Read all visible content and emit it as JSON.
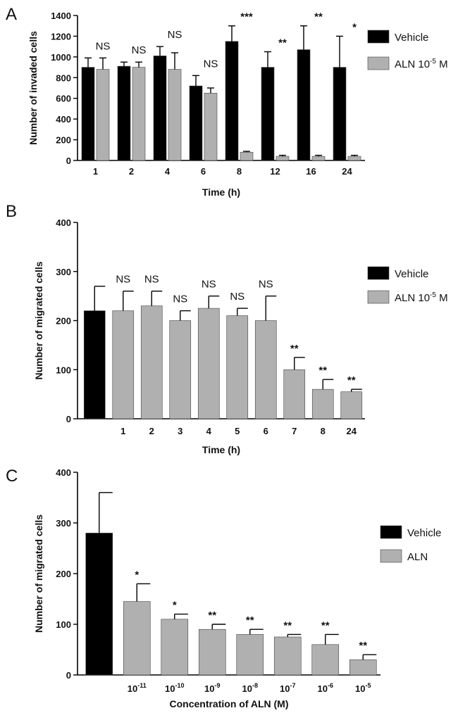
{
  "panels": [
    {
      "label": "A",
      "chart_data": {
        "type": "bar",
        "title": "",
        "xlabel": "Time (h)",
        "ylabel": "Number of invaded cells",
        "ylim": [
          0,
          1400
        ],
        "yticks": [
          0,
          200,
          400,
          600,
          800,
          1000,
          1200,
          1400
        ],
        "categories": [
          "1",
          "2",
          "4",
          "6",
          "8",
          "12",
          "16",
          "24"
        ],
        "series": [
          {
            "name": "Vehicle",
            "color": "#000000",
            "values": [
              900,
              910,
              1010,
              720,
              1150,
              900,
              1070,
              900
            ],
            "errors": [
              90,
              40,
              90,
              100,
              150,
              150,
              230,
              300
            ]
          },
          {
            "name": "ALN 10-5 M",
            "color": "#b0b0b0",
            "values": [
              880,
              900,
              880,
              650,
              80,
              40,
              40,
              40
            ],
            "errors": [
              110,
              50,
              160,
              50,
              8,
              10,
              10,
              10
            ]
          }
        ],
        "annotations": [
          "NS",
          "NS",
          "NS",
          "NS",
          "***",
          "**",
          "**",
          "*"
        ],
        "legend": [
          {
            "label": "Vehicle",
            "color": "#000000"
          },
          {
            "label_base": "ALN 10",
            "label_sup": "-5",
            "label_tail": "M",
            "color": "#b0b0b0"
          }
        ],
        "legend_position": "right"
      }
    },
    {
      "label": "B",
      "chart_data": {
        "type": "bar",
        "title": "",
        "xlabel": "Time (h)",
        "ylabel": "Number of migrated cells",
        "ylim": [
          0,
          400
        ],
        "yticks": [
          0,
          100,
          200,
          300,
          400
        ],
        "categories": [
          "",
          "1",
          "2",
          "3",
          "4",
          "5",
          "6",
          "7",
          "8",
          "24"
        ],
        "series": [
          {
            "name": "Vehicle / ALN 10-5 M",
            "values": [
              220,
              220,
              230,
              200,
              225,
              210,
              200,
              100,
              60,
              55
            ],
            "errors": [
              50,
              40,
              30,
              20,
              25,
              15,
              50,
              25,
              20,
              5
            ],
            "colors": [
              "#000000",
              "#b0b0b0",
              "#b0b0b0",
              "#b0b0b0",
              "#b0b0b0",
              "#b0b0b0",
              "#b0b0b0",
              "#b0b0b0",
              "#b0b0b0",
              "#b0b0b0"
            ]
          }
        ],
        "annotations": [
          "",
          "NS",
          "NS",
          "NS",
          "NS",
          "NS",
          "NS",
          "**",
          "**",
          "**"
        ],
        "legend": [
          {
            "label": "Vehicle",
            "color": "#000000"
          },
          {
            "label_base": "ALN 10",
            "label_sup": "-5",
            "label_tail": "M",
            "color": "#b0b0b0"
          }
        ],
        "legend_position": "right"
      }
    },
    {
      "label": "C",
      "chart_data": {
        "type": "bar",
        "title": "",
        "xlabel": "Concentration of ALN (M)",
        "ylabel": "Number of migrated cells",
        "ylim": [
          0,
          400
        ],
        "yticks": [
          0,
          100,
          200,
          300,
          400
        ],
        "categories": [
          "",
          "10-11",
          "10-10",
          "10-9",
          "10-8",
          "10-7",
          "10-6",
          "10-5"
        ],
        "category_parts": [
          null,
          {
            "base": "10",
            "sup": "-11"
          },
          {
            "base": "10",
            "sup": "-10"
          },
          {
            "base": "10",
            "sup": "-9"
          },
          {
            "base": "10",
            "sup": "-8"
          },
          {
            "base": "10",
            "sup": "-7"
          },
          {
            "base": "10",
            "sup": "-6"
          },
          {
            "base": "10",
            "sup": "-5"
          }
        ],
        "series": [
          {
            "name": "Vehicle / ALN",
            "values": [
              280,
              145,
              110,
              90,
              80,
              75,
              60,
              30
            ],
            "errors": [
              80,
              35,
              10,
              10,
              10,
              5,
              20,
              10
            ],
            "colors": [
              "#000000",
              "#b0b0b0",
              "#b0b0b0",
              "#b0b0b0",
              "#b0b0b0",
              "#b0b0b0",
              "#b0b0b0",
              "#b0b0b0"
            ]
          }
        ],
        "annotations": [
          "",
          "*",
          "*",
          "**",
          "**",
          "**",
          "**",
          "**"
        ],
        "legend": [
          {
            "label": "Vehicle",
            "color": "#000000"
          },
          {
            "label": "ALN",
            "color": "#b0b0b0"
          }
        ],
        "legend_position": "right"
      }
    }
  ]
}
